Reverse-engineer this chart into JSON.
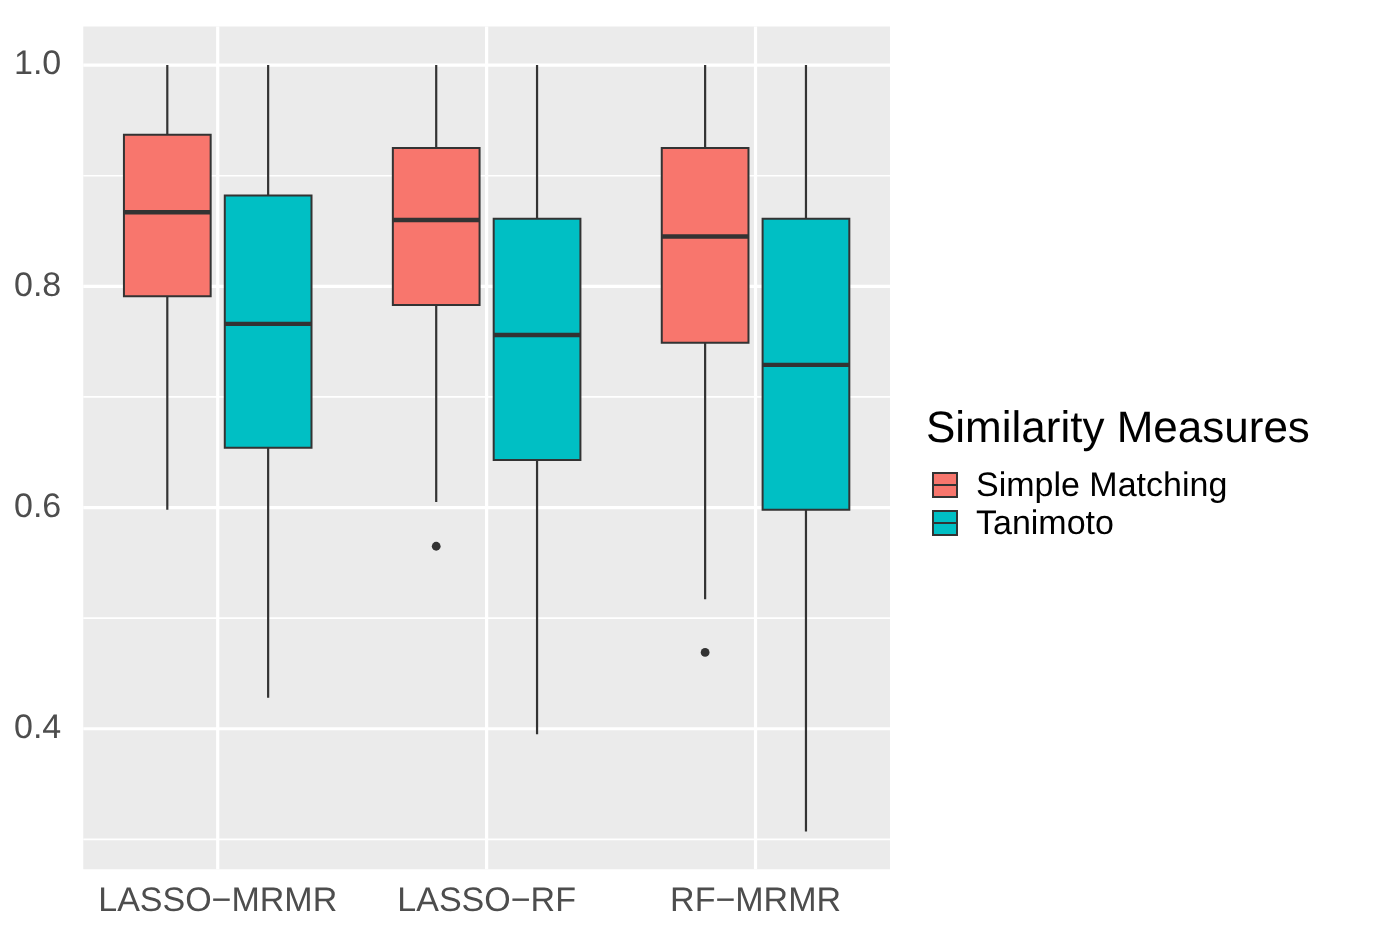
{
  "chart_data": {
    "type": "box",
    "categories": [
      "LASSO−MRMR",
      "LASSO−RF",
      "RF−MRMR"
    ],
    "series": [
      {
        "name": "Simple Matching",
        "color": "#f8766d",
        "boxes": [
          {
            "low": 0.598,
            "q1": 0.791,
            "median": 0.867,
            "q3": 0.937,
            "high": 1.0
          },
          {
            "low": 0.605,
            "q1": 0.783,
            "median": 0.86,
            "q3": 0.925,
            "high": 1.0,
            "outliers": [
              0.565
            ]
          },
          {
            "low": 0.517,
            "q1": 0.749,
            "median": 0.845,
            "q3": 0.925,
            "high": 1.0,
            "outliers": [
              0.469
            ]
          }
        ]
      },
      {
        "name": "Tanimoto",
        "color": "#00bfc4",
        "boxes": [
          {
            "low": 0.428,
            "q1": 0.654,
            "median": 0.766,
            "q3": 0.882,
            "high": 1.0
          },
          {
            "low": 0.395,
            "q1": 0.643,
            "median": 0.756,
            "q3": 0.861,
            "high": 1.0
          },
          {
            "low": 0.307,
            "q1": 0.598,
            "median": 0.729,
            "q3": 0.861,
            "high": 1.0
          }
        ]
      }
    ],
    "legend_title": "Similarity Measures",
    "ylim": [
      0.273,
      1.035
    ],
    "yticks": [
      {
        "value": 0.4,
        "label": "0.4"
      },
      {
        "value": 0.6,
        "label": "0.6"
      },
      {
        "value": 0.8,
        "label": "0.8"
      },
      {
        "value": 1.0,
        "label": "1.0"
      }
    ],
    "grid": true,
    "legend": "right"
  }
}
